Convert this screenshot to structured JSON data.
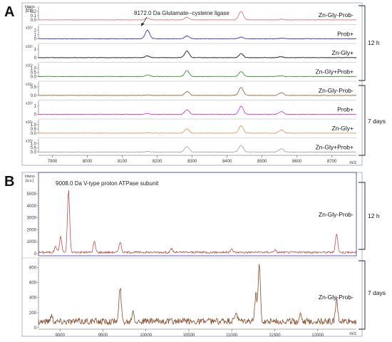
{
  "panels": {
    "a": {
      "letter": "A",
      "y_unit_top": "Intens.",
      "y_unit_bottom": "[a.u.]",
      "x_unit": "m/z",
      "annotation": "8172.0 Da Glutamate--cysteine ligase",
      "group_12h": "12 h",
      "group_7d": "7 days",
      "x_ticks": [
        "7900",
        "8000",
        "8100",
        "8200",
        "8300",
        "8400",
        "8500",
        "8600",
        "8700"
      ],
      "exp": "x10⁴"
    },
    "b": {
      "letter": "B",
      "y_unit_top": "Intens.",
      "y_unit_bottom": "[a.u.]",
      "x_unit": "m/z",
      "annotation": "9008.0 Da V-type proton ATPase subunit",
      "group_12h": "12 h",
      "group_7d": "7 days",
      "x_ticks": [
        "9000",
        "9500",
        "10000",
        "10500",
        "11000",
        "11500",
        "12000"
      ]
    }
  },
  "chart_data": [
    {
      "type": "line",
      "panel": "A",
      "x_axis_label": "m/z",
      "xlim": [
        7860,
        8770
      ],
      "peak_mz": [
        8172,
        8285,
        8440,
        8555
      ],
      "series": [
        {
          "name": "Zn-Gly-Prob-",
          "group": "12 h",
          "color": "#d97a86",
          "peaks": [
            0.15,
            0.25,
            0.78,
            0.05
          ],
          "y_ticks": [
            "0.2",
            "0.1",
            "0.0"
          ]
        },
        {
          "name": "Prob+",
          "group": "12 h",
          "color": "#3b3bbf",
          "peaks": [
            0.75,
            0.25,
            0.15,
            0.05
          ],
          "y_ticks": [
            "2",
            "1",
            "0"
          ]
        },
        {
          "name": "Zn-Gly+",
          "group": "12 h",
          "color": "#1a1a1a",
          "peaks": [
            0.15,
            0.6,
            0.35,
            0.08
          ],
          "y_ticks": [
            "1",
            "0"
          ]
        },
        {
          "name": "Zn-Gly+Prob+",
          "group": "12 h",
          "color": "#3a9a3a",
          "peaks": [
            0.15,
            0.55,
            0.45,
            0.08
          ],
          "y_ticks": [
            "1.0",
            "0.5",
            "0.0"
          ]
        },
        {
          "name": "Zn-Gly-Prob-",
          "group": "7 days",
          "color": "#9a6a4a",
          "peaks": [
            0.05,
            0.35,
            0.7,
            0.25
          ],
          "y_ticks": [
            "0.5",
            "0.0"
          ]
        },
        {
          "name": "Prob+",
          "group": "7 days",
          "color": "#d640c8",
          "peaks": [
            0.08,
            0.4,
            0.7,
            0.25
          ],
          "y_ticks": [
            "1",
            "0"
          ]
        },
        {
          "name": "Zn-Gly+",
          "group": "7 days",
          "color": "#d9a060",
          "peaks": [
            0.05,
            0.4,
            0.65,
            0.3
          ],
          "y_ticks": [
            "1.0",
            "0.5",
            "0.0"
          ]
        },
        {
          "name": "Zn-Gly+Prob+",
          "group": "7 days",
          "color": "#a8a8a8",
          "peaks": [
            0.05,
            0.5,
            0.6,
            0.3
          ],
          "y_ticks": [
            "1.0",
            "0.5",
            "0.0"
          ]
        }
      ]
    },
    {
      "type": "line",
      "panel": "B",
      "x_axis_label": "m/z",
      "xlim": [
        8750,
        12450
      ],
      "series": [
        {
          "name": "Zn-Gly-Prob-",
          "group": "12 h",
          "color": "#c0504d",
          "ylim": [
            0,
            5600
          ],
          "y_ticks": [
            "5000",
            "4000",
            "3000",
            "2000",
            "1000",
            "0"
          ],
          "peaks": [
            [
              8950,
              500
            ],
            [
              9008,
              1300
            ],
            [
              9100,
              5200
            ],
            [
              9400,
              900
            ],
            [
              9700,
              900
            ],
            [
              10300,
              300
            ],
            [
              11000,
              250
            ],
            [
              11500,
              200
            ],
            [
              12220,
              1600
            ]
          ]
        },
        {
          "name": "Zn-Gly-Prob-",
          "group": "7 days",
          "color": "#8b4a2a",
          "ylim": [
            0,
            850
          ],
          "y_ticks": [
            "800",
            "600",
            "400",
            "200",
            "0"
          ],
          "peaks": [
            [
              8900,
              80
            ],
            [
              9700,
              450
            ],
            [
              9850,
              150
            ],
            [
              11050,
              120
            ],
            [
              11280,
              350
            ],
            [
              11320,
              760
            ],
            [
              11800,
              110
            ],
            [
              12220,
              280
            ]
          ]
        }
      ]
    }
  ]
}
